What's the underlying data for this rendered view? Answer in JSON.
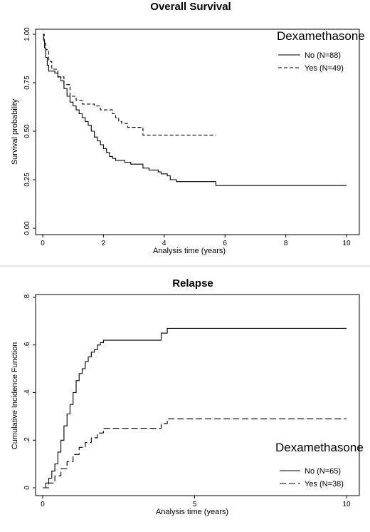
{
  "chart_data": [
    {
      "type": "line",
      "title": "Overall Survival",
      "xlabel": "Analysis time (years)",
      "ylabel": "Survival probability",
      "xlim": [
        0,
        10
      ],
      "ylim": [
        0,
        1
      ],
      "xticks": [
        "0",
        "2",
        "4",
        "6",
        "8",
        "10"
      ],
      "yticks": [
        "0.00",
        "0.25",
        "0.50",
        "0.75",
        "1.00"
      ],
      "xtick_values": [
        0,
        2,
        4,
        6,
        8,
        10
      ],
      "ytick_values": [
        0,
        0.25,
        0.5,
        0.75,
        1
      ],
      "grid": false,
      "legend": {
        "title": "Dexamethasone",
        "position": "top-right"
      },
      "series": [
        {
          "name": "No (N=88)",
          "style": "solid",
          "points": [
            [
              0,
              1.0
            ],
            [
              0.03,
              0.97
            ],
            [
              0.06,
              0.93
            ],
            [
              0.1,
              0.88
            ],
            [
              0.15,
              0.84
            ],
            [
              0.2,
              0.81
            ],
            [
              0.4,
              0.8
            ],
            [
              0.5,
              0.78
            ],
            [
              0.6,
              0.76
            ],
            [
              0.7,
              0.72
            ],
            [
              0.8,
              0.68
            ],
            [
              0.9,
              0.65
            ],
            [
              1.0,
              0.63
            ],
            [
              1.1,
              0.61
            ],
            [
              1.2,
              0.59
            ],
            [
              1.3,
              0.57
            ],
            [
              1.4,
              0.55
            ],
            [
              1.5,
              0.53
            ],
            [
              1.6,
              0.5
            ],
            [
              1.7,
              0.47
            ],
            [
              1.8,
              0.45
            ],
            [
              1.9,
              0.43
            ],
            [
              2.0,
              0.41
            ],
            [
              2.1,
              0.39
            ],
            [
              2.2,
              0.37
            ],
            [
              2.3,
              0.36
            ],
            [
              2.4,
              0.35
            ],
            [
              2.7,
              0.34
            ],
            [
              2.9,
              0.33
            ],
            [
              3.3,
              0.31
            ],
            [
              3.5,
              0.3
            ],
            [
              3.8,
              0.29
            ],
            [
              3.9,
              0.28
            ],
            [
              4.1,
              0.27
            ],
            [
              4.2,
              0.25
            ],
            [
              4.4,
              0.24
            ],
            [
              5.6,
              0.24
            ],
            [
              5.7,
              0.22
            ],
            [
              10.0,
              0.22
            ]
          ]
        },
        {
          "name": "Yes (N=49)",
          "style": "dashed",
          "points": [
            [
              0,
              1.0
            ],
            [
              0.05,
              0.96
            ],
            [
              0.1,
              0.92
            ],
            [
              0.2,
              0.86
            ],
            [
              0.3,
              0.82
            ],
            [
              0.5,
              0.78
            ],
            [
              0.7,
              0.74
            ],
            [
              0.9,
              0.68
            ],
            [
              1.1,
              0.66
            ],
            [
              1.3,
              0.64
            ],
            [
              1.7,
              0.63
            ],
            [
              1.9,
              0.61
            ],
            [
              2.3,
              0.59
            ],
            [
              2.4,
              0.57
            ],
            [
              2.5,
              0.55
            ],
            [
              2.6,
              0.54
            ],
            [
              2.8,
              0.52
            ],
            [
              3.2,
              0.52
            ],
            [
              3.3,
              0.48
            ],
            [
              5.7,
              0.48
            ]
          ]
        }
      ]
    },
    {
      "type": "line",
      "title": "Relapse",
      "xlabel": "Analysis time (years)",
      "ylabel": "Cumulative Incidence Function",
      "xlim": [
        0,
        10
      ],
      "ylim": [
        0,
        0.8
      ],
      "xticks": [
        "0",
        "5",
        "10"
      ],
      "yticks": [
        "0",
        ".2",
        ".4",
        ".6",
        ".8"
      ],
      "xtick_values": [
        0,
        5,
        10
      ],
      "ytick_values": [
        0,
        0.2,
        0.4,
        0.6,
        0.8
      ],
      "grid": false,
      "legend": {
        "title": "Dexamethasone",
        "position": "bottom-right"
      },
      "series": [
        {
          "name": "No (N=65)",
          "style": "solid",
          "points": [
            [
              0,
              0
            ],
            [
              0.1,
              0.02
            ],
            [
              0.2,
              0.04
            ],
            [
              0.3,
              0.07
            ],
            [
              0.4,
              0.1
            ],
            [
              0.5,
              0.15
            ],
            [
              0.6,
              0.2
            ],
            [
              0.7,
              0.26
            ],
            [
              0.8,
              0.31
            ],
            [
              0.9,
              0.35
            ],
            [
              1.0,
              0.4
            ],
            [
              1.1,
              0.45
            ],
            [
              1.2,
              0.48
            ],
            [
              1.3,
              0.5
            ],
            [
              1.4,
              0.53
            ],
            [
              1.5,
              0.55
            ],
            [
              1.6,
              0.57
            ],
            [
              1.7,
              0.58
            ],
            [
              1.8,
              0.6
            ],
            [
              1.9,
              0.61
            ],
            [
              2.0,
              0.62
            ],
            [
              3.8,
              0.62
            ],
            [
              3.9,
              0.65
            ],
            [
              4.0,
              0.65
            ],
            [
              4.1,
              0.67
            ],
            [
              10.0,
              0.67
            ]
          ]
        },
        {
          "name": "Yes (N=38)",
          "style": "dashed",
          "points": [
            [
              0,
              0
            ],
            [
              0.2,
              0.02
            ],
            [
              0.4,
              0.05
            ],
            [
              0.6,
              0.08
            ],
            [
              0.8,
              0.11
            ],
            [
              1.0,
              0.14
            ],
            [
              1.2,
              0.17
            ],
            [
              1.4,
              0.19
            ],
            [
              1.6,
              0.21
            ],
            [
              1.8,
              0.23
            ],
            [
              2.0,
              0.25
            ],
            [
              3.8,
              0.25
            ],
            [
              3.9,
              0.27
            ],
            [
              4.1,
              0.29
            ],
            [
              10.0,
              0.29
            ]
          ]
        }
      ]
    }
  ]
}
